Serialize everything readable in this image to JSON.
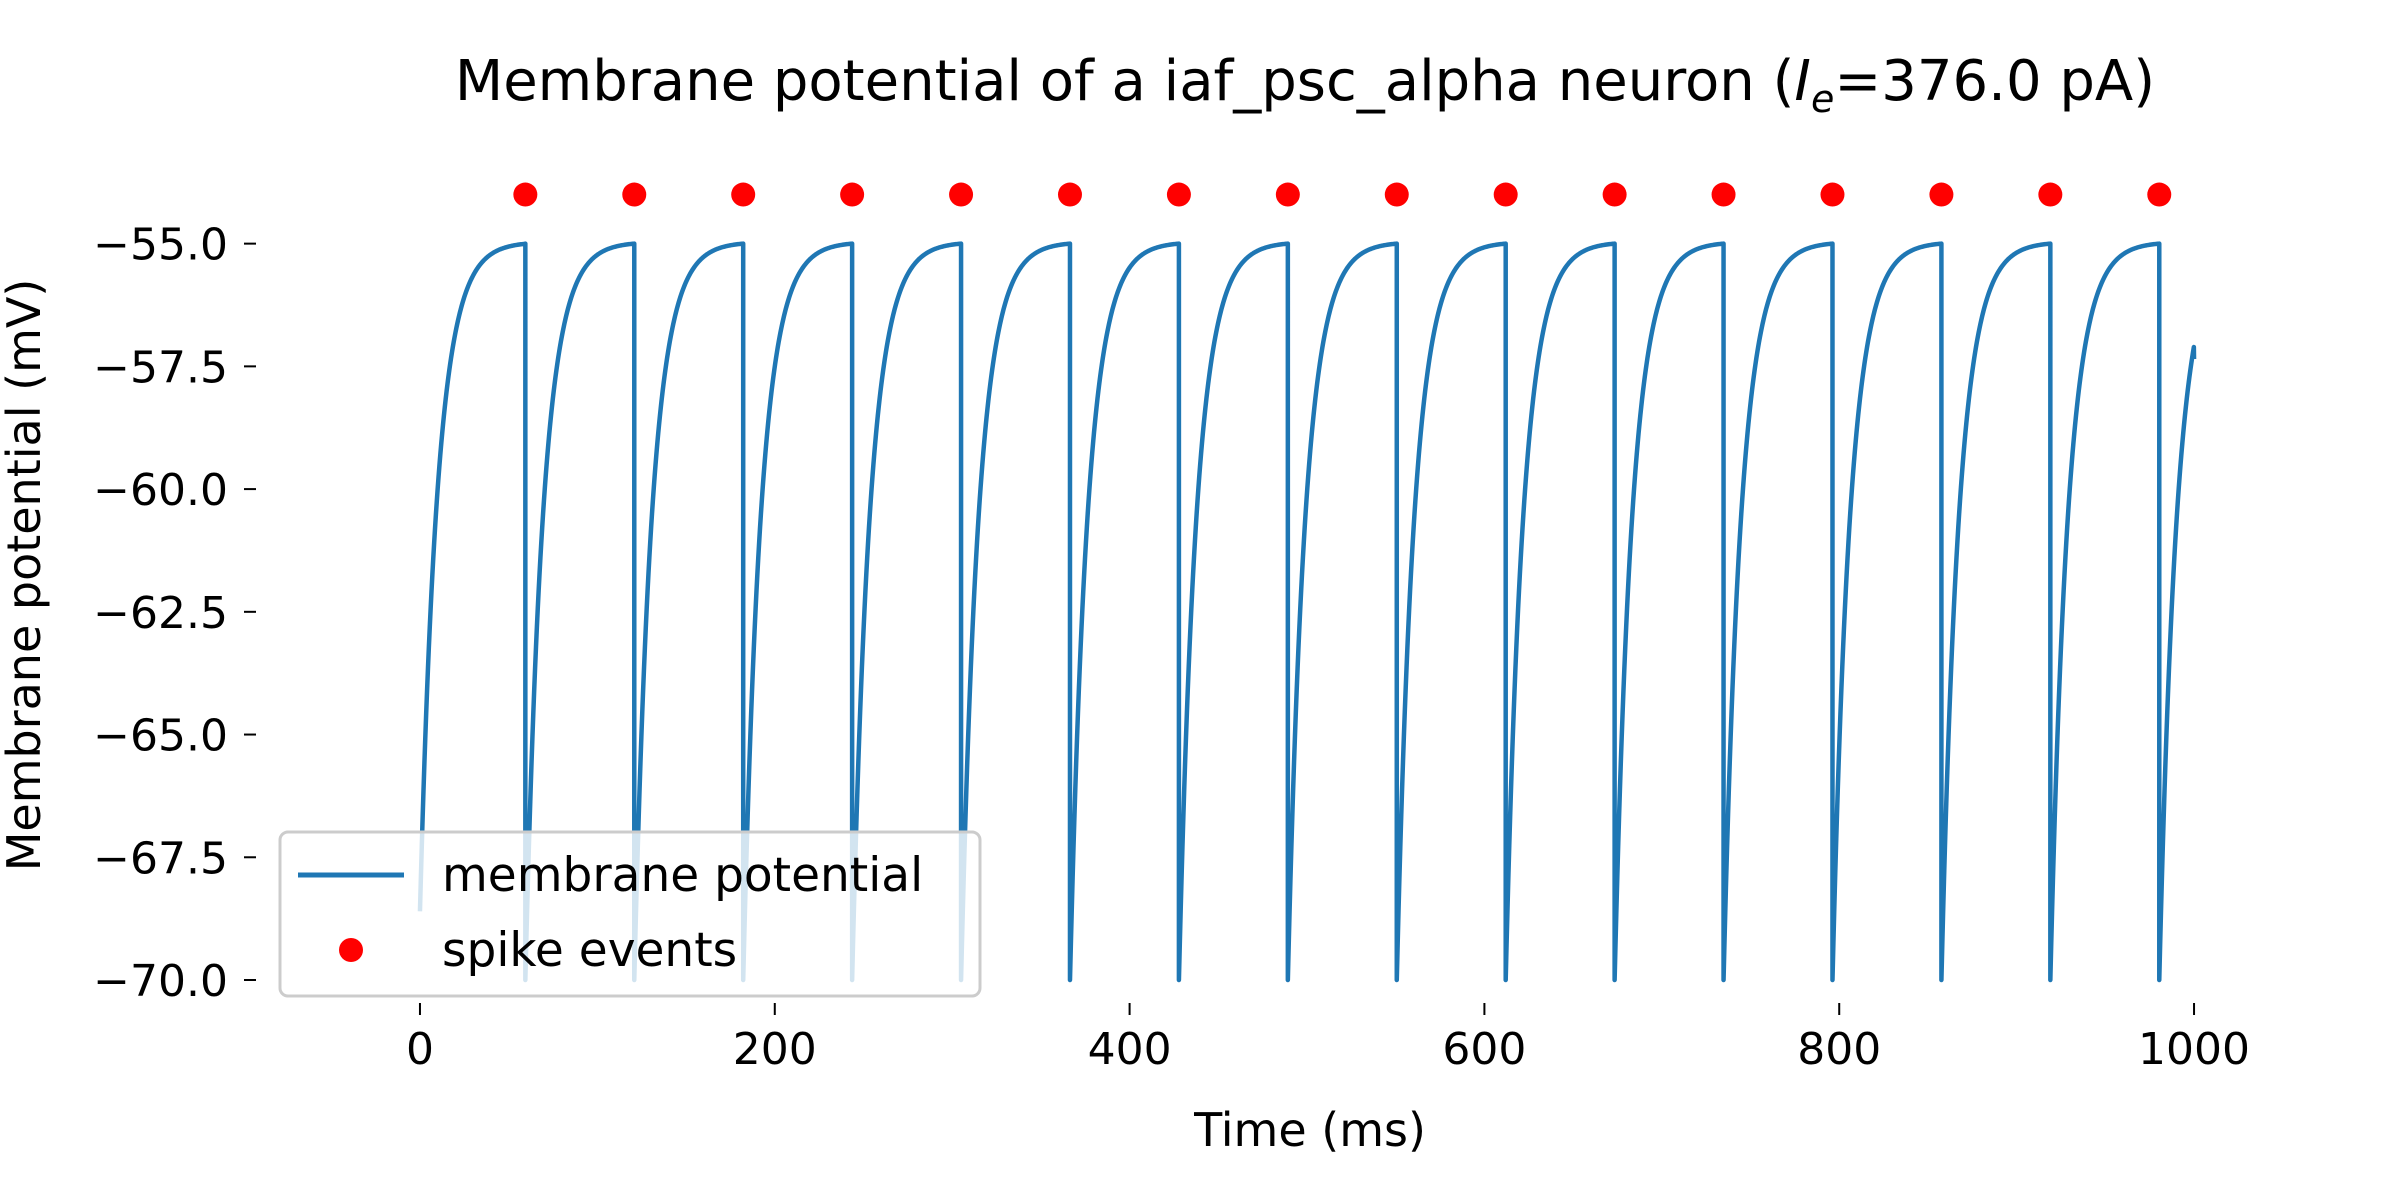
{
  "chart_data": {
    "type": "line",
    "title": {
      "prefix": "Membrane potential of a iaf_psc_alpha neuron (",
      "symbol": "I",
      "subscript": "e",
      "suffix": "=376.0 pA)"
    },
    "xlabel": "Time (ms)",
    "ylabel": "Membrane potential (mV)",
    "xlim": [
      -40,
      1040
    ],
    "ylim": [
      -70.0,
      -53.5
    ],
    "xticks": [
      0,
      200,
      400,
      600,
      800,
      1000
    ],
    "xtick_labels": [
      "0",
      "200",
      "400",
      "600",
      "800",
      "1000"
    ],
    "yticks": [
      -55.0,
      -57.5,
      -60.0,
      -62.5,
      -65.0,
      -67.5,
      -70.0
    ],
    "ytick_labels": [
      "−55.0",
      "−57.5",
      "−60.0",
      "−62.5",
      "−65.0",
      "−67.5",
      "−70.0"
    ],
    "grid": false,
    "legend_position": "lower left",
    "series": [
      {
        "name": "membrane potential",
        "kind": "line",
        "color": "#1f77b4",
        "model": {
          "v_reset": -70.0,
          "v_threshold": -55.0,
          "tau_ms": 10.0,
          "end_ms": 1000,
          "end_value": -57.35,
          "start_value": -68.6
        }
      },
      {
        "name": "spike events",
        "kind": "scatter",
        "color": "#ff0000",
        "y": -54.0,
        "x": [
          59.4,
          120.8,
          182.2,
          243.6,
          305.0,
          366.4,
          427.8,
          489.2,
          550.6,
          612.0,
          673.4,
          734.8,
          796.2,
          857.6,
          919.0,
          980.4
        ]
      }
    ]
  }
}
